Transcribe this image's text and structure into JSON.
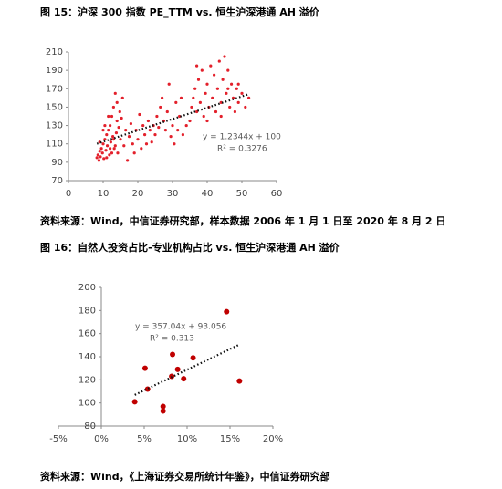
{
  "chart_data": [
    {
      "type": "scatter",
      "title": "图 15：沪深 300 指数 PE_TTM vs. 恒生沪深港通 AH 溢价",
      "x": [
        8.2,
        8.5,
        8.8,
        9,
        9.2,
        9.5,
        9.8,
        10,
        10.2,
        10.5,
        10.8,
        11,
        11.2,
        11.5,
        11.8,
        12,
        12.2,
        12.5,
        12.8,
        13,
        13.2,
        13.5,
        13.8,
        14,
        14.2,
        14.5,
        14.8,
        15,
        15.3,
        15.6,
        16,
        16.5,
        17,
        17.5,
        18,
        18.5,
        19,
        19.5,
        20,
        20.5,
        21,
        21.5,
        22,
        22.5,
        23,
        23.5,
        24,
        24.5,
        25,
        25.5,
        26,
        26.5,
        27,
        27.5,
        28,
        28.5,
        29,
        29.5,
        30,
        30.5,
        31,
        31.5,
        32,
        32.5,
        33,
        34,
        35,
        35.5,
        36,
        36.5,
        37,
        37.5,
        38,
        38.5,
        39,
        39.5,
        40,
        40.5,
        41,
        41.5,
        42,
        42.5,
        43,
        43.5,
        44,
        44.5,
        45,
        45.5,
        46,
        46.5,
        47,
        47.5,
        48,
        48.5,
        49,
        50,
        51,
        52,
        10,
        11,
        12,
        13,
        9,
        10.5,
        11.5,
        12.5,
        13.5,
        14,
        37,
        40,
        44,
        46,
        49
      ],
      "values": [
        95,
        98,
        92,
        102,
        96,
        105,
        100,
        110,
        94,
        115,
        103,
        120,
        108,
        125,
        98,
        130,
        112,
        140,
        118,
        150,
        105,
        165,
        122,
        135,
        100,
        128,
        145,
        115,
        138,
        160,
        108,
        125,
        92,
        118,
        132,
        110,
        100,
        125,
        115,
        142,
        105,
        130,
        120,
        110,
        135,
        125,
        112,
        130,
        120,
        140,
        128,
        150,
        160,
        135,
        125,
        145,
        175,
        118,
        130,
        110,
        155,
        125,
        140,
        160,
        120,
        130,
        135,
        150,
        160,
        170,
        145,
        180,
        155,
        190,
        140,
        165,
        175,
        150,
        195,
        160,
        185,
        145,
        170,
        200,
        155,
        180,
        205,
        165,
        190,
        150,
        175,
        160,
        145,
        170,
        155,
        165,
        150,
        160,
        125,
        95,
        105,
        115,
        112,
        130,
        140,
        100,
        108,
        155,
        195,
        135,
        140,
        170,
        175
      ],
      "color": "#e3202b",
      "xlim": [
        0,
        60
      ],
      "xticks": [
        0,
        10,
        20,
        30,
        40,
        50,
        60
      ],
      "ylim": [
        70,
        210
      ],
      "yticks": [
        70,
        90,
        110,
        130,
        150,
        170,
        190,
        210
      ],
      "trendline": {
        "slope": 1.2344,
        "intercept": 100
      },
      "annotations": [
        "y = 1.2344x + 100",
        "R² = 0.3276"
      ],
      "source": "资料来源：Wind，中信证券研究部，样本数据 2006 年 1 月 1 日至 2020 年 8 月 2 日"
    },
    {
      "type": "scatter",
      "title": "图 16：自然人投资占比-专业机构占比 vs. 恒生沪深港通 AH 溢价",
      "x": [
        0.039,
        0.051,
        0.054,
        0.072,
        0.072,
        0.082,
        0.083,
        0.089,
        0.096,
        0.107,
        0.146,
        0.161
      ],
      "values": [
        101,
        130,
        112,
        97,
        93,
        123,
        142,
        129,
        121,
        139,
        179,
        119
      ],
      "color": "#c00000",
      "xlim": [
        -0.05,
        0.2
      ],
      "xticks": [
        {
          "value": -0.05,
          "label": "-5%"
        },
        {
          "value": 0,
          "label": "0%"
        },
        {
          "value": 0.05,
          "label": "5%"
        },
        {
          "value": 0.1,
          "label": "10%"
        },
        {
          "value": 0.15,
          "label": "15%"
        },
        {
          "value": 0.2,
          "label": "20%"
        }
      ],
      "ylim": [
        80,
        200
      ],
      "yticks": [
        80,
        100,
        120,
        140,
        160,
        180,
        200
      ],
      "trendline": {
        "slope": 357.04,
        "intercept": 93.056
      },
      "annotations": [
        "y = 357.04x + 93.056",
        "R² = 0.313"
      ],
      "source": "资料来源：Wind，《上海证券交易所统计年鉴》，中信证券研究部"
    }
  ]
}
